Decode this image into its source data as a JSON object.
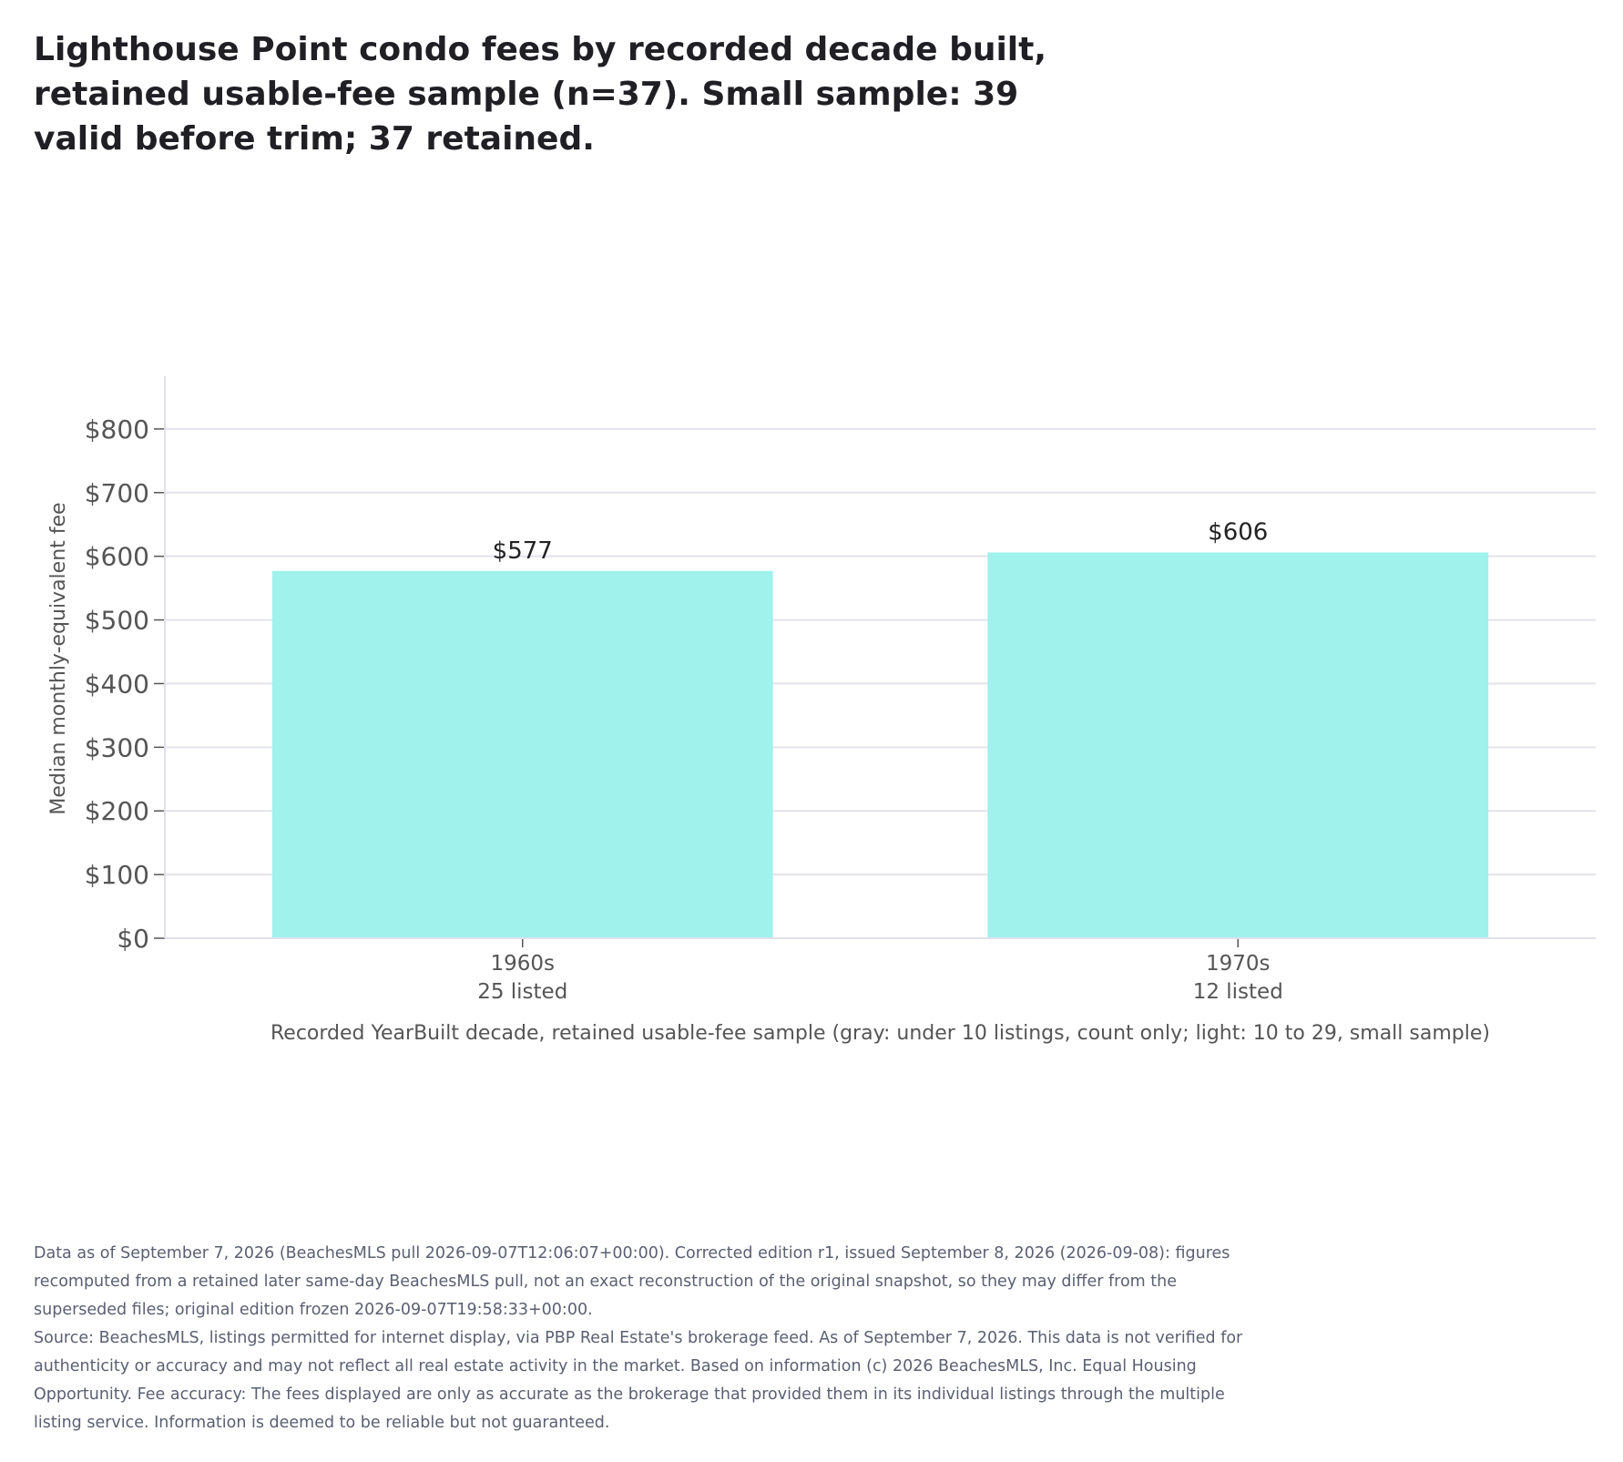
{
  "chart_data": {
    "type": "bar",
    "title": "Lighthouse Point condo fees by recorded decade built, retained usable-fee sample (n=37). Small sample: 39 valid before trim; 37 retained.",
    "categories": [
      "1960s",
      "1970s"
    ],
    "category_counts": [
      "25 listed",
      "12 listed"
    ],
    "values": [
      577,
      606
    ],
    "value_labels": [
      "$577",
      "$606"
    ],
    "xlabel": "Recorded YearBuilt decade, retained usable-fee sample (gray: under 10 listings, count only; light: 10 to 29, small sample)",
    "ylabel": "Median monthly-equivalent fee",
    "ylim": [
      0,
      880
    ],
    "yticks": [
      0,
      100,
      200,
      300,
      400,
      500,
      600,
      700,
      800
    ],
    "ytick_labels": [
      "$0",
      "$100",
      "$200",
      "$300",
      "$400",
      "$500",
      "$600",
      "$700",
      "$800"
    ],
    "grid": true,
    "bar_color": "#a0f2ec"
  },
  "footnotes": {
    "edition": "Data as of September 7, 2026 (BeachesMLS pull 2026-09-07T12:06:07+00:00). Corrected edition r1, issued September 8, 2026 (2026-09-08): figures recomputed from a retained later same-day BeachesMLS pull, not an exact reconstruction of the original snapshot, so they may differ from the superseded files; original edition frozen 2026-09-07T19:58:33+00:00.",
    "source": "Source: BeachesMLS, listings permitted for internet display, via PBP Real Estate's brokerage feed. As of September 7, 2026. This data is not verified for authenticity or accuracy and may not reflect all real estate activity in the market. Based on information (c) 2026 BeachesMLS, Inc. Equal Housing Opportunity. Fee accuracy: The fees displayed are only as accurate as the brokerage that provided them in its individual listings through the multiple listing service. Information is deemed to be reliable but not guaranteed."
  }
}
